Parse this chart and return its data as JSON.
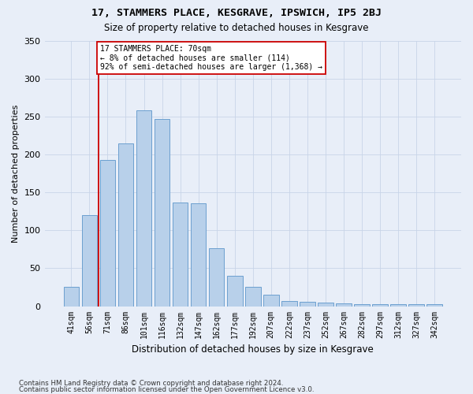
{
  "title": "17, STAMMERS PLACE, KESGRAVE, IPSWICH, IP5 2BJ",
  "subtitle": "Size of property relative to detached houses in Kesgrave",
  "xlabel": "Distribution of detached houses by size in Kesgrave",
  "ylabel": "Number of detached properties",
  "categories": [
    "41sqm",
    "56sqm",
    "71sqm",
    "86sqm",
    "101sqm",
    "116sqm",
    "132sqm",
    "147sqm",
    "162sqm",
    "177sqm",
    "192sqm",
    "207sqm",
    "222sqm",
    "237sqm",
    "252sqm",
    "267sqm",
    "282sqm",
    "297sqm",
    "312sqm",
    "327sqm",
    "342sqm"
  ],
  "bar_heights": [
    25,
    120,
    193,
    215,
    258,
    247,
    137,
    136,
    76,
    40,
    25,
    15,
    7,
    6,
    5,
    4,
    3,
    3,
    3,
    3,
    3
  ],
  "bar_color": "#b8d0ea",
  "bar_edgecolor": "#6ca0d0",
  "vline_color": "#cc0000",
  "annotation_line1": "17 STAMMERS PLACE: 70sqm",
  "annotation_line2": "← 8% of detached houses are smaller (114)",
  "annotation_line3": "92% of semi-detached houses are larger (1,368) →",
  "annotation_box_edgecolor": "#cc0000",
  "ylim": [
    0,
    350
  ],
  "yticks": [
    0,
    50,
    100,
    150,
    200,
    250,
    300,
    350
  ],
  "grid_color": "#c8d4e8",
  "background_color": "#e8eef8",
  "footer1": "Contains HM Land Registry data © Crown copyright and database right 2024.",
  "footer2": "Contains public sector information licensed under the Open Government Licence v3.0."
}
